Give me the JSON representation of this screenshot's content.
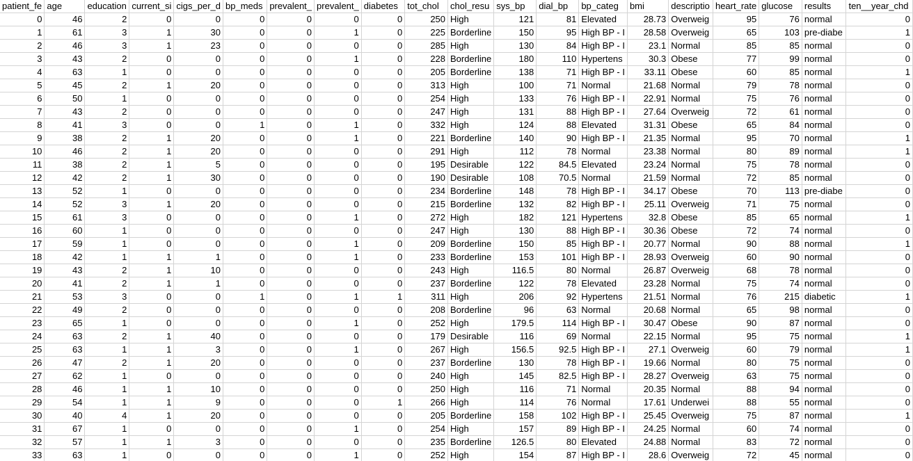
{
  "headers": [
    "patient_fe",
    "age",
    "education",
    "current_si",
    "cigs_per_d",
    "bp_meds",
    "prevalent_",
    "prevalent_",
    "diabetes",
    "tot_chol",
    "chol_resu",
    "sys_bp",
    "dial_bp",
    "bp_categ",
    "bmi",
    "descriptio",
    "heart_rate",
    "glucose",
    "results",
    "ten__year_chd"
  ],
  "rows": [
    [
      "0",
      "46",
      "2",
      "0",
      "0",
      "0",
      "0",
      "0",
      "0",
      "250",
      "High",
      "121",
      "81",
      "Elevated",
      "28.73",
      "Overweig",
      "95",
      "76",
      "normal",
      "0"
    ],
    [
      "1",
      "61",
      "3",
      "1",
      "30",
      "0",
      "0",
      "1",
      "0",
      "225",
      "Borderline",
      "150",
      "95",
      "High BP - I",
      "28.58",
      "Overweig",
      "65",
      "103",
      "pre-diabe",
      "1"
    ],
    [
      "2",
      "46",
      "3",
      "1",
      "23",
      "0",
      "0",
      "0",
      "0",
      "285",
      "High",
      "130",
      "84",
      "High BP - I",
      "23.1",
      "Normal",
      "85",
      "85",
      "normal",
      "0"
    ],
    [
      "3",
      "43",
      "2",
      "0",
      "0",
      "0",
      "0",
      "1",
      "0",
      "228",
      "Borderline",
      "180",
      "110",
      "Hypertens",
      "30.3",
      "Obese",
      "77",
      "99",
      "normal",
      "0"
    ],
    [
      "4",
      "63",
      "1",
      "0",
      "0",
      "0",
      "0",
      "0",
      "0",
      "205",
      "Borderline",
      "138",
      "71",
      "High BP - I",
      "33.11",
      "Obese",
      "60",
      "85",
      "normal",
      "1"
    ],
    [
      "5",
      "45",
      "2",
      "1",
      "20",
      "0",
      "0",
      "0",
      "0",
      "313",
      "High",
      "100",
      "71",
      "Normal",
      "21.68",
      "Normal",
      "79",
      "78",
      "normal",
      "0"
    ],
    [
      "6",
      "50",
      "1",
      "0",
      "0",
      "0",
      "0",
      "0",
      "0",
      "254",
      "High",
      "133",
      "76",
      "High BP - I",
      "22.91",
      "Normal",
      "75",
      "76",
      "normal",
      "0"
    ],
    [
      "7",
      "43",
      "2",
      "0",
      "0",
      "0",
      "0",
      "0",
      "0",
      "247",
      "High",
      "131",
      "88",
      "High BP - I",
      "27.64",
      "Overweig",
      "72",
      "61",
      "normal",
      "0"
    ],
    [
      "8",
      "41",
      "3",
      "0",
      "0",
      "1",
      "0",
      "1",
      "0",
      "332",
      "High",
      "124",
      "88",
      "Elevated",
      "31.31",
      "Obese",
      "65",
      "84",
      "normal",
      "0"
    ],
    [
      "9",
      "38",
      "2",
      "1",
      "20",
      "0",
      "0",
      "1",
      "0",
      "221",
      "Borderline",
      "140",
      "90",
      "High BP - I",
      "21.35",
      "Normal",
      "95",
      "70",
      "normal",
      "1"
    ],
    [
      "10",
      "46",
      "2",
      "1",
      "20",
      "0",
      "0",
      "0",
      "0",
      "291",
      "High",
      "112",
      "78",
      "Normal",
      "23.38",
      "Normal",
      "80",
      "89",
      "normal",
      "1"
    ],
    [
      "11",
      "38",
      "2",
      "1",
      "5",
      "0",
      "0",
      "0",
      "0",
      "195",
      "Desirable",
      "122",
      "84.5",
      "Elevated",
      "23.24",
      "Normal",
      "75",
      "78",
      "normal",
      "0"
    ],
    [
      "12",
      "42",
      "2",
      "1",
      "30",
      "0",
      "0",
      "0",
      "0",
      "190",
      "Desirable",
      "108",
      "70.5",
      "Normal",
      "21.59",
      "Normal",
      "72",
      "85",
      "normal",
      "0"
    ],
    [
      "13",
      "52",
      "1",
      "0",
      "0",
      "0",
      "0",
      "0",
      "0",
      "234",
      "Borderline",
      "148",
      "78",
      "High BP - I",
      "34.17",
      "Obese",
      "70",
      "113",
      "pre-diabe",
      "0"
    ],
    [
      "14",
      "52",
      "3",
      "1",
      "20",
      "0",
      "0",
      "0",
      "0",
      "215",
      "Borderline",
      "132",
      "82",
      "High BP - I",
      "25.11",
      "Overweig",
      "71",
      "75",
      "normal",
      "0"
    ],
    [
      "15",
      "61",
      "3",
      "0",
      "0",
      "0",
      "0",
      "1",
      "0",
      "272",
      "High",
      "182",
      "121",
      "Hypertens",
      "32.8",
      "Obese",
      "85",
      "65",
      "normal",
      "1"
    ],
    [
      "16",
      "60",
      "1",
      "0",
      "0",
      "0",
      "0",
      "0",
      "0",
      "247",
      "High",
      "130",
      "88",
      "High BP - I",
      "30.36",
      "Obese",
      "72",
      "74",
      "normal",
      "0"
    ],
    [
      "17",
      "59",
      "1",
      "0",
      "0",
      "0",
      "0",
      "1",
      "0",
      "209",
      "Borderline",
      "150",
      "85",
      "High BP - I",
      "20.77",
      "Normal",
      "90",
      "88",
      "normal",
      "1"
    ],
    [
      "18",
      "42",
      "1",
      "1",
      "1",
      "0",
      "0",
      "1",
      "0",
      "233",
      "Borderline",
      "153",
      "101",
      "High BP - I",
      "28.93",
      "Overweig",
      "60",
      "90",
      "normal",
      "0"
    ],
    [
      "19",
      "43",
      "2",
      "1",
      "10",
      "0",
      "0",
      "0",
      "0",
      "243",
      "High",
      "116.5",
      "80",
      "Normal",
      "26.87",
      "Overweig",
      "68",
      "78",
      "normal",
      "0"
    ],
    [
      "20",
      "41",
      "2",
      "1",
      "1",
      "0",
      "0",
      "0",
      "0",
      "237",
      "Borderline",
      "122",
      "78",
      "Elevated",
      "23.28",
      "Normal",
      "75",
      "74",
      "normal",
      "0"
    ],
    [
      "21",
      "53",
      "3",
      "0",
      "0",
      "1",
      "0",
      "1",
      "1",
      "311",
      "High",
      "206",
      "92",
      "Hypertens",
      "21.51",
      "Normal",
      "76",
      "215",
      "diabetic",
      "1"
    ],
    [
      "22",
      "49",
      "2",
      "0",
      "0",
      "0",
      "0",
      "0",
      "0",
      "208",
      "Borderline",
      "96",
      "63",
      "Normal",
      "20.68",
      "Normal",
      "65",
      "98",
      "normal",
      "0"
    ],
    [
      "23",
      "65",
      "1",
      "0",
      "0",
      "0",
      "0",
      "1",
      "0",
      "252",
      "High",
      "179.5",
      "114",
      "High BP - I",
      "30.47",
      "Obese",
      "90",
      "87",
      "normal",
      "0"
    ],
    [
      "24",
      "63",
      "2",
      "1",
      "40",
      "0",
      "0",
      "0",
      "0",
      "179",
      "Desirable",
      "116",
      "69",
      "Normal",
      "22.15",
      "Normal",
      "95",
      "75",
      "normal",
      "1"
    ],
    [
      "25",
      "63",
      "1",
      "1",
      "3",
      "0",
      "0",
      "1",
      "0",
      "267",
      "High",
      "156.5",
      "92.5",
      "High BP - I",
      "27.1",
      "Overweig",
      "60",
      "79",
      "normal",
      "1"
    ],
    [
      "26",
      "47",
      "2",
      "1",
      "20",
      "0",
      "0",
      "0",
      "0",
      "237",
      "Borderline",
      "130",
      "78",
      "High BP - I",
      "19.66",
      "Normal",
      "80",
      "75",
      "normal",
      "0"
    ],
    [
      "27",
      "62",
      "1",
      "0",
      "0",
      "0",
      "0",
      "0",
      "0",
      "240",
      "High",
      "145",
      "82.5",
      "High BP - I",
      "28.27",
      "Overweig",
      "63",
      "75",
      "normal",
      "0"
    ],
    [
      "28",
      "46",
      "1",
      "1",
      "10",
      "0",
      "0",
      "0",
      "0",
      "250",
      "High",
      "116",
      "71",
      "Normal",
      "20.35",
      "Normal",
      "88",
      "94",
      "normal",
      "0"
    ],
    [
      "29",
      "54",
      "1",
      "1",
      "9",
      "0",
      "0",
      "0",
      "1",
      "266",
      "High",
      "114",
      "76",
      "Normal",
      "17.61",
      "Underwei",
      "88",
      "55",
      "normal",
      "0"
    ],
    [
      "30",
      "40",
      "4",
      "1",
      "20",
      "0",
      "0",
      "0",
      "0",
      "205",
      "Borderline",
      "158",
      "102",
      "High BP - I",
      "25.45",
      "Overweig",
      "75",
      "87",
      "normal",
      "1"
    ],
    [
      "31",
      "67",
      "1",
      "0",
      "0",
      "0",
      "0",
      "1",
      "0",
      "254",
      "High",
      "157",
      "89",
      "High BP - I",
      "24.25",
      "Normal",
      "60",
      "74",
      "normal",
      "0"
    ],
    [
      "32",
      "57",
      "1",
      "1",
      "3",
      "0",
      "0",
      "0",
      "0",
      "235",
      "Borderline",
      "126.5",
      "80",
      "Elevated",
      "24.88",
      "Normal",
      "83",
      "72",
      "normal",
      "0"
    ],
    [
      "33",
      "63",
      "1",
      "0",
      "0",
      "0",
      "0",
      "1",
      "0",
      "252",
      "High",
      "154",
      "87",
      "High BP - I",
      "28.6",
      "Overweig",
      "72",
      "45",
      "normal",
      "0"
    ]
  ]
}
